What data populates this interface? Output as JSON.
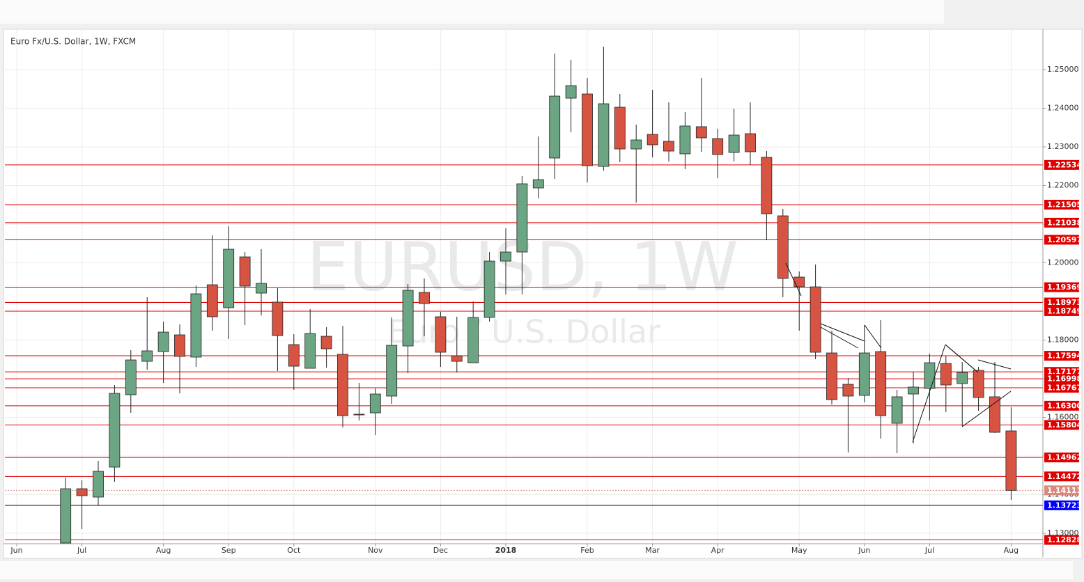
{
  "chart_data": {
    "type": "candlestick",
    "title": "Euro Fx/U.S. Dollar, 1W, FXCM",
    "watermark": "EURUSD, 1W",
    "watermark_subtitle": "Euro / U.S. Dollar",
    "up_color": "#6ba583",
    "down_color": "#d75442",
    "categories": [
      "Jun",
      null,
      null,
      null,
      "Jul",
      null,
      null,
      null,
      null,
      "Aug",
      null,
      null,
      null,
      "Sep",
      null,
      null,
      null,
      "Oct",
      null,
      null,
      null,
      null,
      "Nov",
      null,
      null,
      null,
      "Dec",
      null,
      null,
      null,
      "2018",
      null,
      null,
      null,
      null,
      "Feb",
      null,
      null,
      null,
      "Mar",
      null,
      null,
      null,
      "Apr",
      null,
      null,
      null,
      null,
      "May",
      null,
      null,
      null,
      "Jun",
      null,
      null,
      null,
      "Jul",
      null,
      null,
      null,
      null,
      "Aug"
    ],
    "open": [
      null,
      null,
      null,
      1.12748,
      1.14153,
      1.13937,
      1.14712,
      1.16586,
      1.1745,
      1.17703,
      1.18135,
      1.17559,
      1.19432,
      1.18838,
      1.20153,
      1.19216,
      1.18982,
      1.17883,
      1.1727,
      1.18099,
      1.17631,
      1.16081,
      1.16117,
      1.1655,
      1.17847,
      1.19234,
      1.18604,
      1.17595,
      1.17414,
      1.18586,
      1.20045,
      1.20279,
      1.21937,
      1.22712,
      1.24261,
      1.24369,
      1.22495,
      1.24027,
      1.22946,
      1.23324,
      1.23144,
      1.2282,
      1.23523,
      1.23216,
      1.22856,
      1.23342,
      1.2273,
      1.21216,
      1.19631,
      1.19378,
      1.17667,
      1.16856,
      1.16568,
      1.17703,
      1.15847,
      1.16604,
      1.16748,
      1.17396,
      1.16874,
      1.17216,
      1.16532,
      1.15649
    ],
    "high": [
      null,
      null,
      null,
      1.14441,
      1.14369,
      1.14874,
      1.16838,
      1.17739,
      1.19108,
      1.18477,
      1.18405,
      1.19414,
      1.20712,
      1.20946,
      1.20279,
      1.20351,
      1.19342,
      1.18153,
      1.18802,
      1.18333,
      1.18369,
      1.16892,
      1.16748,
      1.18586,
      1.1945,
      1.19595,
      1.1873,
      1.18604,
      1.19,
      1.20279,
      1.20892,
      1.22243,
      1.2327,
      1.25414,
      1.25252,
      1.24784,
      1.25595,
      1.24369,
      1.23577,
      1.24477,
      1.24153,
      1.23901,
      1.24784,
      1.23468,
      1.23991,
      1.24153,
      1.22892,
      1.21396,
      1.19775,
      1.19955,
      1.18243,
      1.17018,
      1.18387,
      1.18514,
      1.16712,
      1.1718,
      1.17649,
      1.17595,
      1.17432,
      1.17306,
      1.17432,
      1.16261
    ],
    "low": [
      null,
      null,
      null,
      1.12748,
      1.13108,
      1.13721,
      1.14333,
      1.16117,
      1.17234,
      1.16892,
      1.16622,
      1.17306,
      1.18243,
      1.18027,
      1.18387,
      1.1864,
      1.17198,
      1.16712,
      1.1727,
      1.17288,
      1.15739,
      1.15919,
      1.15541,
      1.16351,
      1.17144,
      1.18099,
      1.17306,
      1.17162,
      1.17414,
      1.18477,
      1.1918,
      1.1918,
      1.21667,
      1.22171,
      1.23378,
      1.22081,
      1.22387,
      1.22604,
      1.21559,
      1.2273,
      1.22622,
      1.22423,
      1.22874,
      1.22189,
      1.22622,
      1.22532,
      1.20586,
      1.19108,
      1.18243,
      1.17505,
      1.16333,
      1.1509,
      1.16387,
      1.1545,
      1.15072,
      1.15324,
      1.15919,
      1.16135,
      1.15775,
      1.16171,
      1.15595,
      1.13865
    ],
    "close": [
      null,
      null,
      null,
      1.14153,
      1.13973,
      1.14604,
      1.16622,
      1.17486,
      1.17721,
      1.18207,
      1.17577,
      1.19198,
      1.18604,
      1.20351,
      1.19396,
      1.19468,
      1.18117,
      1.17324,
      1.18171,
      1.17775,
      1.16045,
      1.16063,
      1.16604,
      1.17865,
      1.19288,
      1.18946,
      1.17685,
      1.1745,
      1.18586,
      1.20045,
      1.20279,
      1.22045,
      1.22153,
      1.24315,
      1.24586,
      1.22514,
      1.24117,
      1.22946,
      1.2318,
      1.23054,
      1.22892,
      1.23541,
      1.23234,
      1.22802,
      1.23306,
      1.22874,
      1.2127,
      1.19595,
      1.19378,
      1.17685,
      1.16459,
      1.1655,
      1.17667,
      1.16045,
      1.16532,
      1.16784,
      1.17414,
      1.16838,
      1.17162,
      1.16514,
      1.15613,
      1.14111
    ],
    "ylim": [
      1.12748,
      1.25991
    ],
    "yticks": [
      {
        "value": 1.13,
        "label": "1.13000"
      },
      {
        "value": 1.14,
        "label": "1.14000"
      },
      {
        "value": 1.15,
        "label": "1.15000"
      },
      {
        "value": 1.16,
        "label": "1.16000"
      },
      {
        "value": 1.17,
        "label": "1.17000"
      },
      {
        "value": 1.18,
        "label": "1.18000"
      },
      {
        "value": 1.19,
        "label": "1.19000"
      },
      {
        "value": 1.2,
        "label": "1.20000"
      },
      {
        "value": 1.21,
        "label": "1.21000"
      },
      {
        "value": 1.22,
        "label": "1.22000"
      },
      {
        "value": 1.23,
        "label": "1.23000"
      },
      {
        "value": 1.24,
        "label": "1.24000"
      },
      {
        "value": 1.25,
        "label": "1.25000"
      }
    ],
    "grid": true,
    "levels": [
      {
        "value": 1.22534,
        "label": "1.22534",
        "color": "#e00000"
      },
      {
        "value": 1.21505,
        "label": "1.21505",
        "color": "#e00000"
      },
      {
        "value": 1.21038,
        "label": "1.21038",
        "color": "#e00000"
      },
      {
        "value": 1.20597,
        "label": "1.20597",
        "color": "#e00000"
      },
      {
        "value": 1.19369,
        "label": "1.19369",
        "color": "#e00000"
      },
      {
        "value": 1.18973,
        "label": "1.18973",
        "color": "#e00000"
      },
      {
        "value": 1.18749,
        "label": "1.18749",
        "color": "#e00000"
      },
      {
        "value": 1.17594,
        "label": "1.17594",
        "color": "#e00000"
      },
      {
        "value": 1.17177,
        "label": "1.17177",
        "color": "#e00000"
      },
      {
        "value": 1.16998,
        "label": "1.16998",
        "color": "#e00000"
      },
      {
        "value": 1.16767,
        "label": "1.16767",
        "color": "#e00000"
      },
      {
        "value": 1.163,
        "label": "1.16300",
        "color": "#e00000"
      },
      {
        "value": 1.15804,
        "label": "1.15804",
        "color": "#e00000"
      },
      {
        "value": 1.14962,
        "label": "1.14962",
        "color": "#e00000"
      },
      {
        "value": 1.14472,
        "label": "1.14472",
        "color": "#e00000"
      },
      {
        "value": 1.14111,
        "label": "1.14111",
        "color": "#d98a7c",
        "style": "dotted"
      },
      {
        "value": 1.13723,
        "label": "1.13723",
        "color": "#0000ff",
        "line_color": "#000000"
      },
      {
        "value": 1.12828,
        "label": "1.12828",
        "color": "#e00000"
      }
    ]
  }
}
